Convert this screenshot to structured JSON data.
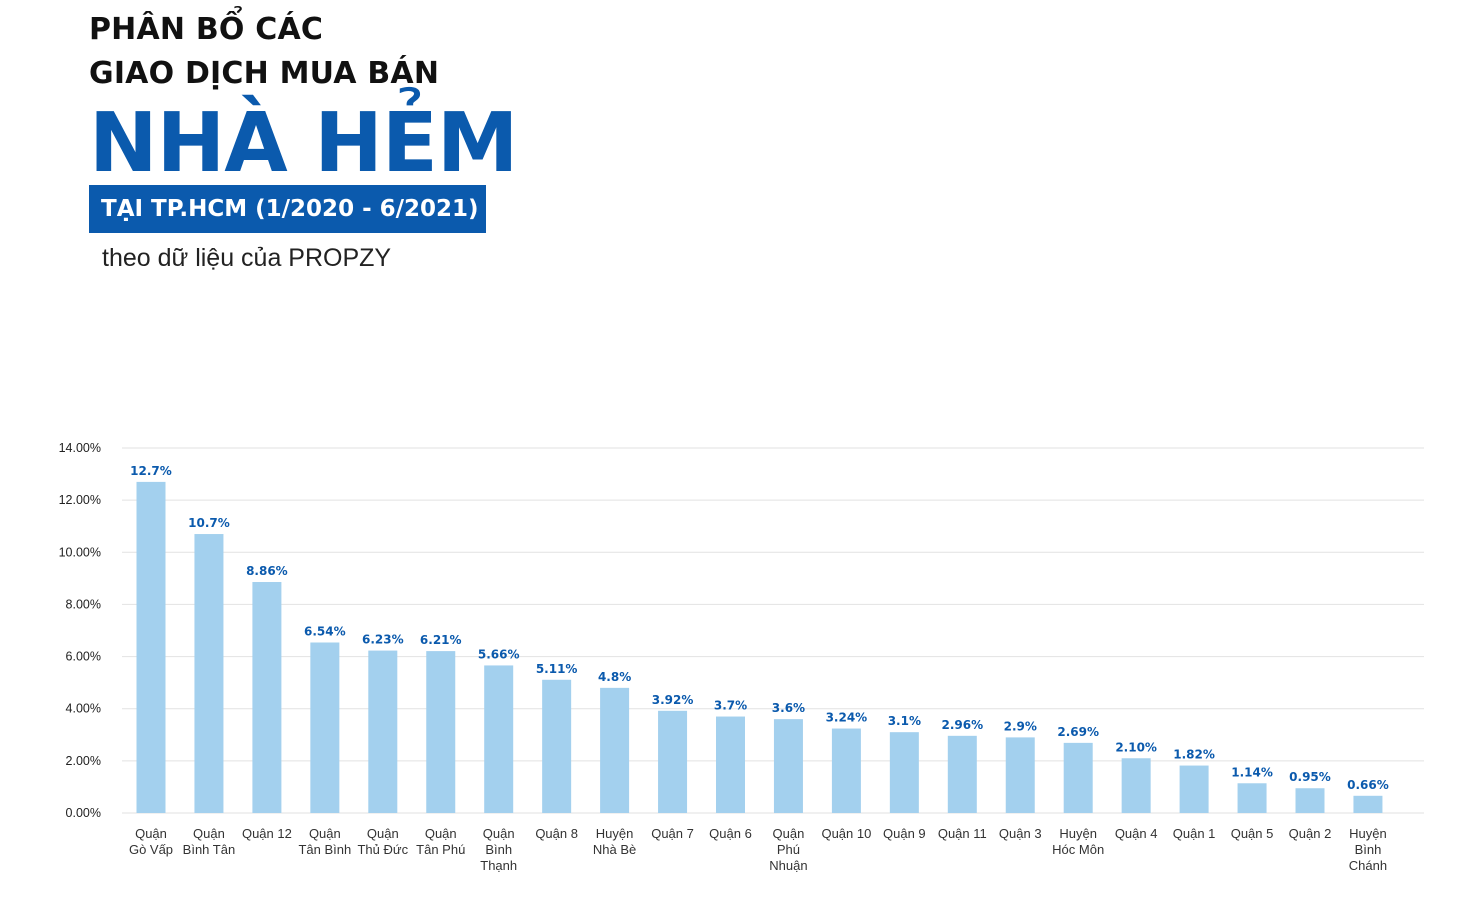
{
  "header": {
    "title_line1": "PHÂN BỔ CÁC",
    "title_line2": "GIAO DỊCH MUA BÁN",
    "title_big": "NHÀ HẺM",
    "title_band": "TẠI TP.HCM (1/2020 - 6/2021)",
    "subtitle": "theo dữ liệu của PROPZY"
  },
  "colors": {
    "accent": "#0b5aad",
    "bar": "#a3d0ee",
    "grid": "#e2e2e2"
  },
  "chart_data": {
    "type": "bar",
    "categories": [
      [
        "Quận",
        "Gò Vấp"
      ],
      [
        "Quận",
        "Bình Tân"
      ],
      [
        "Quận 12"
      ],
      [
        "Quận",
        "Tân Bình"
      ],
      [
        "Quận",
        "Thủ Đức"
      ],
      [
        "Quận",
        "Tân Phú"
      ],
      [
        "Quận",
        "Bình",
        "Thạnh"
      ],
      [
        "Quận 8"
      ],
      [
        "Huyện",
        "Nhà Bè"
      ],
      [
        "Quận 7"
      ],
      [
        "Quận 6"
      ],
      [
        "Quận",
        "Phú",
        "Nhuận"
      ],
      [
        "Quận 10"
      ],
      [
        "Quận 9"
      ],
      [
        "Quận 11"
      ],
      [
        "Quận 3"
      ],
      [
        "Huyện",
        "Hóc Môn"
      ],
      [
        "Quận 4"
      ],
      [
        "Quận 1"
      ],
      [
        "Quận 5"
      ],
      [
        "Quận 2"
      ],
      [
        "Huyện",
        "Bình",
        "Chánh"
      ]
    ],
    "values": [
      12.7,
      10.7,
      8.86,
      6.54,
      6.23,
      6.21,
      5.66,
      5.11,
      4.8,
      3.92,
      3.7,
      3.6,
      3.24,
      3.1,
      2.96,
      2.9,
      2.69,
      2.1,
      1.82,
      1.14,
      0.95,
      0.66
    ],
    "value_labels": [
      "12.7%",
      "10.7%",
      "8.86%",
      "6.54%",
      "6.23%",
      "6.21%",
      "5.66%",
      "5.11%",
      "4.8%",
      "3.92%",
      "3.7%",
      "3.6%",
      "3.24%",
      "3.1%",
      "2.96%",
      "2.9%",
      "2.69%",
      "2.10%",
      "1.82%",
      "1.14%",
      "0.95%",
      "0.66%"
    ],
    "y_ticks": [
      "0.00%",
      "2.00%",
      "4.00%",
      "6.00%",
      "8.00%",
      "10.00%",
      "12.00%",
      "14.00%"
    ],
    "ylim": [
      0,
      14
    ],
    "grid": true,
    "legend": "none"
  }
}
